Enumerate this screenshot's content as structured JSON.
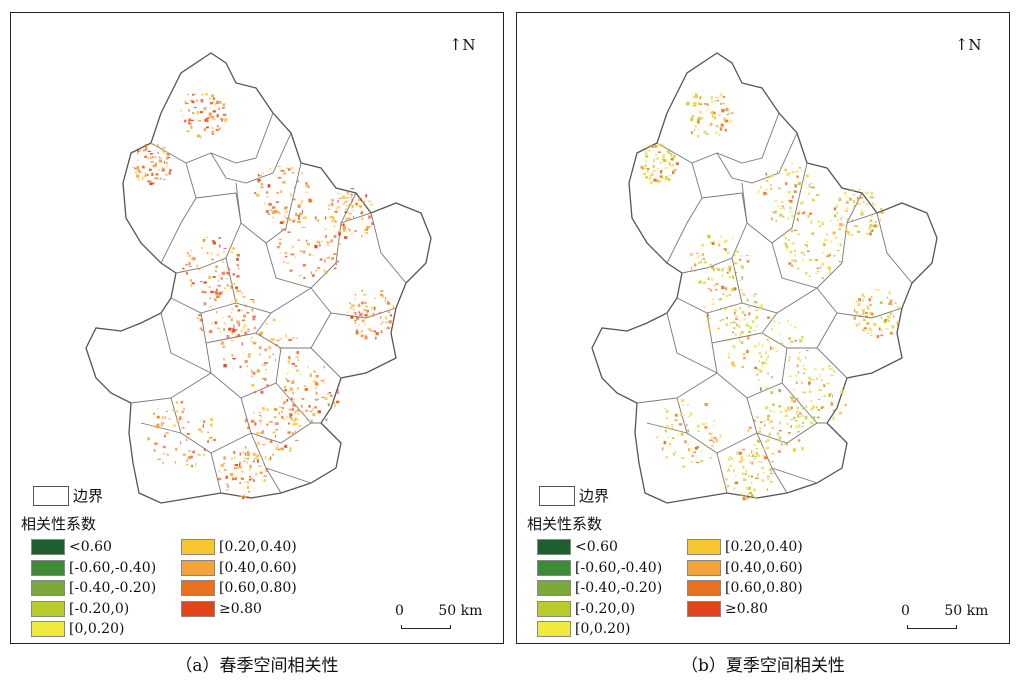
{
  "panels": [
    {
      "id": "a",
      "caption": "（a）春季空间相关性",
      "dominant_colors": [
        "#f2a33a",
        "#e8701f",
        "#e2431b",
        "#f6c631"
      ]
    },
    {
      "id": "b",
      "caption": "（b）夏季空间相关性",
      "dominant_colors": [
        "#e8e14a",
        "#b7cc2a",
        "#f6c631",
        "#e8701f"
      ]
    }
  ],
  "north_label": "N",
  "boundary_label": "边界",
  "legend_title": "相关性系数",
  "legend": [
    {
      "label": "<0.60",
      "color": "#1f5e2f"
    },
    {
      "label": "[-0.60,-0.40)",
      "color": "#3f8a36"
    },
    {
      "label": "[-0.40,-0.20)",
      "color": "#7aa83a"
    },
    {
      "label": "[-0.20,0)",
      "color": "#b7cc2a"
    },
    {
      "label": "[0,0.20)",
      "color": "#f1ea3c"
    },
    {
      "label": "[0.20,0.40)",
      "color": "#f6c631"
    },
    {
      "label": "[0.40,0.60)",
      "color": "#f2a33a"
    },
    {
      "label": "[0.60,0.80)",
      "color": "#e8701f"
    },
    {
      "label": "≥0.80",
      "color": "#e2431b"
    }
  ],
  "scale": {
    "start": "0",
    "end": "50 km"
  }
}
